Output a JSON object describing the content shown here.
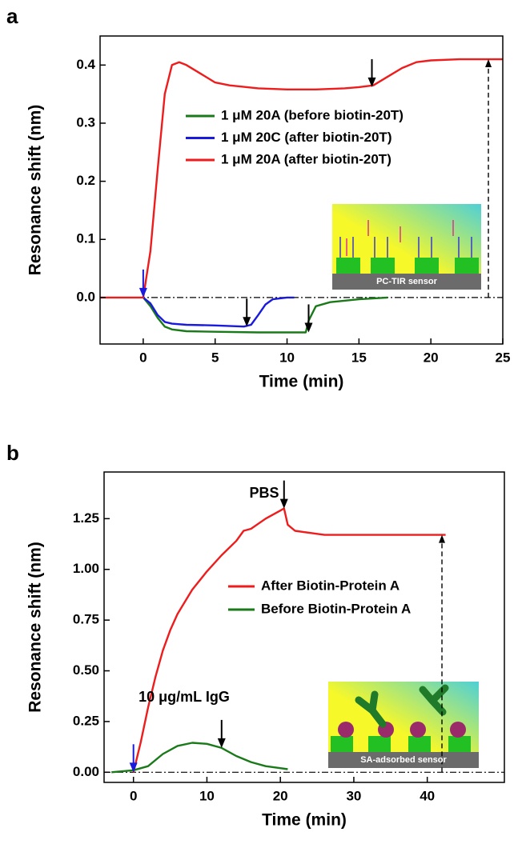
{
  "chart_data": [
    {
      "type": "line",
      "label": "a",
      "xlabel": "Time (min)",
      "ylabel": "Resonance shift (nm)",
      "xlim": [
        -3,
        25
      ],
      "ylim": [
        -0.08,
        0.45
      ],
      "xticks": [
        0,
        5,
        10,
        15,
        20,
        25
      ],
      "yticks": [
        {
          "value": 0,
          "label": "0.0"
        },
        0.1,
        0.2,
        0.3,
        0.4
      ],
      "series": [
        {
          "name": "1 μM 20A (before biotin-20T)",
          "color": "#1a7a1a",
          "x": [
            0,
            0.5,
            1,
            1.5,
            2,
            3,
            5,
            8,
            11.3,
            11.5,
            12,
            13,
            15,
            17
          ],
          "values": [
            0,
            -0.015,
            -0.035,
            -0.05,
            -0.055,
            -0.058,
            -0.059,
            -0.06,
            -0.06,
            -0.04,
            -0.015,
            -0.008,
            -0.003,
            0
          ]
        },
        {
          "name": "1 μM 20C (after biotin-20T)",
          "color": "#1a1adc",
          "x": [
            0,
            0.5,
            1,
            1.5,
            2,
            3,
            5,
            7,
            7.5,
            8,
            8.5,
            9,
            10,
            10.5
          ],
          "values": [
            0,
            -0.01,
            -0.03,
            -0.042,
            -0.045,
            -0.047,
            -0.048,
            -0.05,
            -0.047,
            -0.03,
            -0.012,
            -0.003,
            0,
            0
          ]
        },
        {
          "name": "1 μM 20A (after biotin-20T)",
          "color": "#ee1c1c",
          "x": [
            -3,
            0,
            0.5,
            1,
            1.5,
            2,
            2.5,
            3,
            4,
            5,
            6,
            8,
            10,
            12,
            14,
            15,
            16,
            17,
            18,
            19,
            20,
            22,
            25
          ],
          "values": [
            0,
            0,
            0.08,
            0.22,
            0.35,
            0.4,
            0.405,
            0.4,
            0.385,
            0.37,
            0.365,
            0.36,
            0.358,
            0.358,
            0.36,
            0.362,
            0.365,
            0.38,
            0.395,
            0.405,
            0.408,
            0.41,
            0.41
          ]
        }
      ],
      "arrows": [
        {
          "x": 0,
          "y": 0,
          "color": "#1a1adc"
        },
        {
          "x": 7.2,
          "y": -0.05,
          "color": "#000000"
        },
        {
          "x": 11.5,
          "y": -0.06,
          "color": "#000000"
        },
        {
          "x": 15.9,
          "y": 0.362,
          "color": "#000000"
        },
        {
          "x": 24,
          "y": 0.41,
          "color": "#000000",
          "dashed": true
        }
      ],
      "annotations": [],
      "inset_label": "PC-TIR sensor"
    },
    {
      "type": "line",
      "label": "b",
      "xlabel": "Time (min)",
      "ylabel": "Resonance shift (nm)",
      "xlim": [
        -4,
        50.5
      ],
      "ylim": [
        -0.05,
        1.48
      ],
      "xticks": [
        0,
        10,
        20,
        30,
        40
      ],
      "yticks": [
        {
          "value": 0,
          "label": "0.00"
        },
        0.25,
        {
          "value": 0.5,
          "label": "0.50"
        },
        0.75,
        {
          "value": 1,
          "label": "1.00"
        },
        1.25
      ],
      "series": [
        {
          "name": "After Biotin-Protein A",
          "color": "#ee1c1c",
          "x": [
            0,
            1,
            2,
            3,
            4,
            5,
            6,
            8,
            10,
            12,
            14,
            15,
            16,
            18,
            20,
            20.5,
            21,
            22,
            24,
            26,
            30,
            35,
            40,
            42.5
          ],
          "values": [
            0,
            0.15,
            0.32,
            0.47,
            0.6,
            0.7,
            0.78,
            0.9,
            0.99,
            1.07,
            1.14,
            1.19,
            1.2,
            1.25,
            1.29,
            1.3,
            1.22,
            1.19,
            1.18,
            1.17,
            1.17,
            1.17,
            1.17,
            1.17
          ]
        },
        {
          "name": "Before Biotin-Protein A",
          "color": "#1a7a1a",
          "x": [
            -3,
            0,
            2,
            4,
            6,
            8,
            10,
            12,
            14,
            16,
            18,
            20,
            21
          ],
          "values": [
            0,
            0.01,
            0.03,
            0.09,
            0.13,
            0.145,
            0.14,
            0.12,
            0.08,
            0.05,
            0.03,
            0.02,
            0.015
          ]
        }
      ],
      "arrows": [
        {
          "x": 0,
          "y": 0,
          "color": "#1a1adc"
        },
        {
          "x": 12,
          "y": 0.12,
          "color": "#000000"
        },
        {
          "x": 20.5,
          "y": 1.3,
          "color": "#000000"
        },
        {
          "x": 42,
          "y": 1.17,
          "color": "#000000",
          "dashed": true
        }
      ],
      "annotations": [
        "PBS",
        "10 μg/mL IgG"
      ],
      "inset_label": "SA-adsorbed sensor"
    }
  ]
}
